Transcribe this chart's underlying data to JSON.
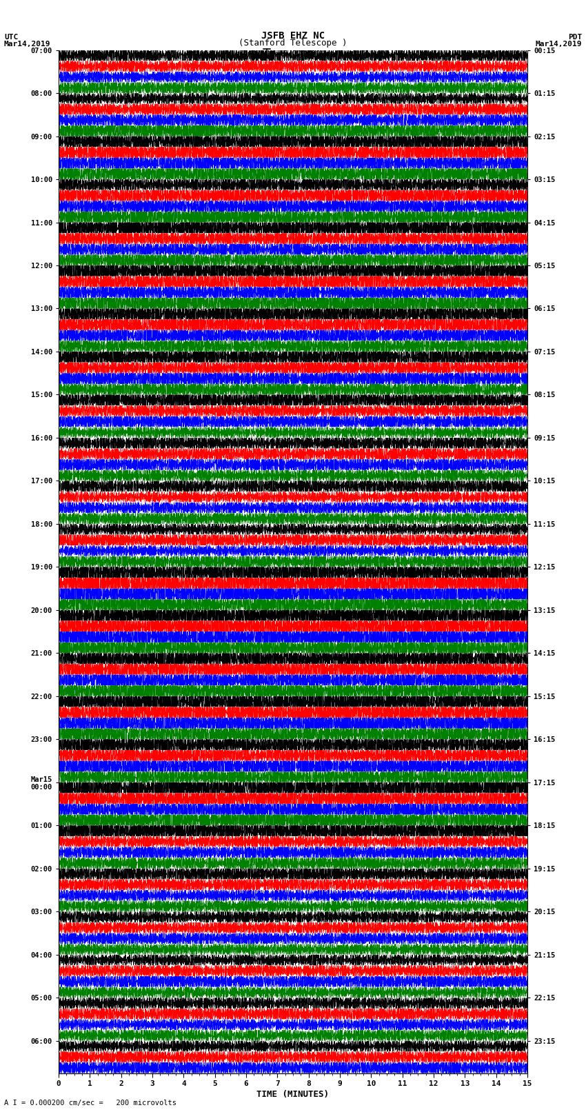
{
  "title_line1": "JSFB EHZ NC",
  "title_line2": "(Stanford Telescope )",
  "scale_label": "= 0.000200 cm/sec",
  "left_header": "UTC",
  "left_date": "Mar14,2019",
  "right_header": "PDT",
  "right_date": "Mar14,2019",
  "xlabel": "TIME (MINUTES)",
  "bottom_note": "A I = 0.000200 cm/sec =   200 microvolts",
  "xmin": 0,
  "xmax": 15,
  "xticks": [
    0,
    1,
    2,
    3,
    4,
    5,
    6,
    7,
    8,
    9,
    10,
    11,
    12,
    13,
    14,
    15
  ],
  "utc_labels": [
    "07:00",
    "",
    "",
    "",
    "08:00",
    "",
    "",
    "",
    "09:00",
    "",
    "",
    "",
    "10:00",
    "",
    "",
    "",
    "11:00",
    "",
    "",
    "",
    "12:00",
    "",
    "",
    "",
    "13:00",
    "",
    "",
    "",
    "14:00",
    "",
    "",
    "",
    "15:00",
    "",
    "",
    "",
    "16:00",
    "",
    "",
    "",
    "17:00",
    "",
    "",
    "",
    "18:00",
    "",
    "",
    "",
    "19:00",
    "",
    "",
    "",
    "20:00",
    "",
    "",
    "",
    "21:00",
    "",
    "",
    "",
    "22:00",
    "",
    "",
    "",
    "23:00",
    "",
    "",
    "",
    "Mar15\n00:00",
    "",
    "",
    "",
    "01:00",
    "",
    "",
    "",
    "02:00",
    "",
    "",
    "",
    "03:00",
    "",
    "",
    "",
    "04:00",
    "",
    "",
    "",
    "05:00",
    "",
    "",
    "",
    "06:00",
    "",
    ""
  ],
  "pdt_labels": [
    "00:15",
    "",
    "",
    "",
    "01:15",
    "",
    "",
    "",
    "02:15",
    "",
    "",
    "",
    "03:15",
    "",
    "",
    "",
    "04:15",
    "",
    "",
    "",
    "05:15",
    "",
    "",
    "",
    "06:15",
    "",
    "",
    "",
    "07:15",
    "",
    "",
    "",
    "08:15",
    "",
    "",
    "",
    "09:15",
    "",
    "",
    "",
    "10:15",
    "",
    "",
    "",
    "11:15",
    "",
    "",
    "",
    "12:15",
    "",
    "",
    "",
    "13:15",
    "",
    "",
    "",
    "14:15",
    "",
    "",
    "",
    "15:15",
    "",
    "",
    "",
    "16:15",
    "",
    "",
    "",
    "17:15",
    "",
    "",
    "",
    "18:15",
    "",
    "",
    "",
    "19:15",
    "",
    "",
    "",
    "20:15",
    "",
    "",
    "",
    "21:15",
    "",
    "",
    "",
    "22:15",
    "",
    "",
    "",
    "23:15",
    "",
    ""
  ],
  "trace_colors": [
    "black",
    "red",
    "blue",
    "green"
  ],
  "background_color": "white",
  "fig_width": 8.5,
  "fig_height": 16.13,
  "dpi": 100,
  "num_rows": 95,
  "seed": 42
}
